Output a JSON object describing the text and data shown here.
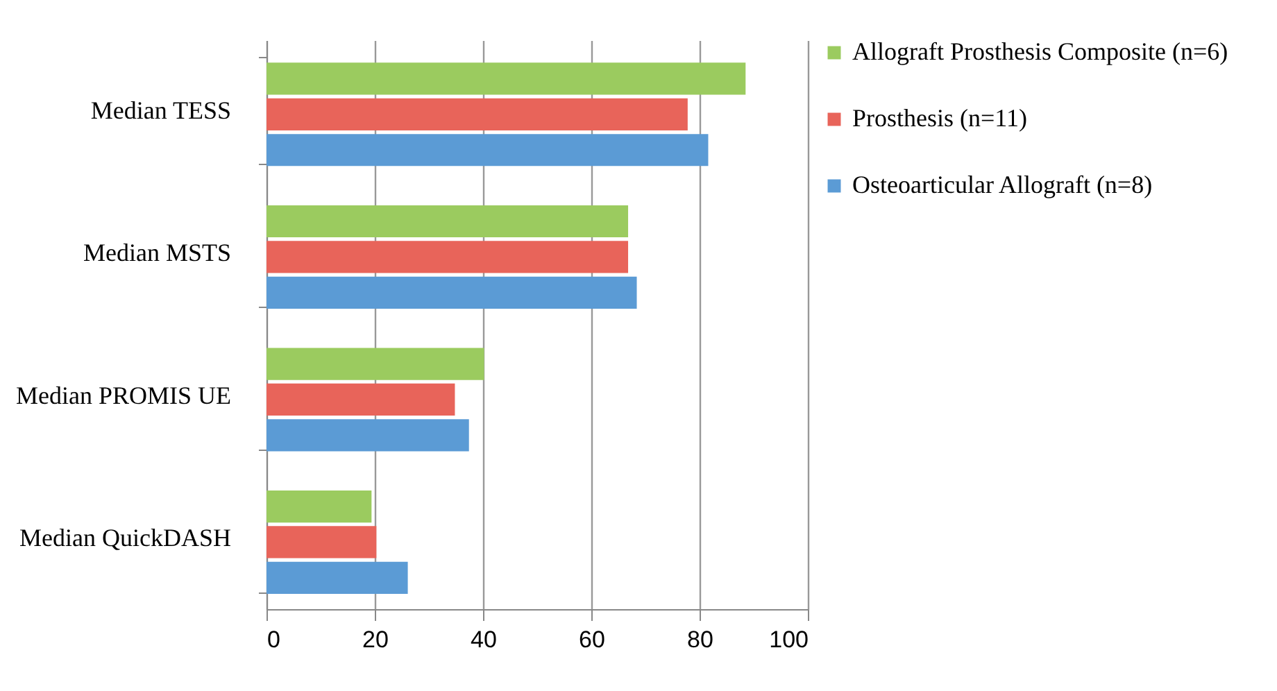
{
  "chart_data": {
    "type": "bar",
    "orientation": "horizontal",
    "categories": [
      "Median TESS",
      "Median MSTS",
      "Median PROMIS UE",
      "Median QuickDASH"
    ],
    "series": [
      {
        "name": "Allograft Prosthesis Composite (n=6)",
        "color": "#9bcb5f",
        "values": [
          88.5,
          66.8,
          40.2,
          19.4
        ]
      },
      {
        "name": "Prosthesis (n=11)",
        "color": "#e8645a",
        "values": [
          77.8,
          66.8,
          34.8,
          20.3
        ]
      },
      {
        "name": "Osteoarticular Allograft (n=8)",
        "color": "#5b9bd5",
        "values": [
          81.6,
          68.4,
          37.4,
          26.1
        ]
      }
    ],
    "xlim": [
      0,
      100
    ],
    "xticks": [
      0,
      20,
      40,
      60,
      80,
      100
    ],
    "grid": "x",
    "legend": "right"
  }
}
